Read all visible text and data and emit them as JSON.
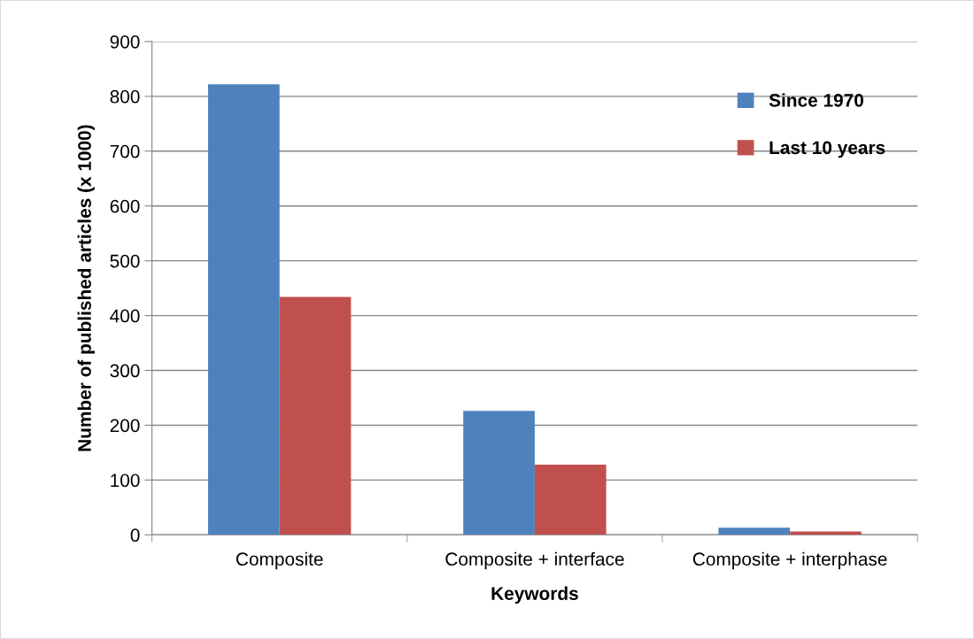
{
  "chart_data": {
    "type": "bar",
    "xlabel": "Keywords",
    "ylabel": "Number of published articles (x 1000)",
    "categories": [
      "Composite",
      "Composite + interface",
      "Composite + interphase"
    ],
    "series": [
      {
        "name": "Since 1970",
        "color": "#4f81bd",
        "values": [
          822,
          226,
          13
        ]
      },
      {
        "name": "Last 10 years",
        "color": "#c0504d",
        "values": [
          434,
          128,
          6
        ]
      }
    ],
    "ylim": [
      0,
      900
    ],
    "yticks": [
      0,
      100,
      200,
      300,
      400,
      500,
      600,
      700,
      800,
      900
    ],
    "grid": "y",
    "legend": "top right"
  }
}
